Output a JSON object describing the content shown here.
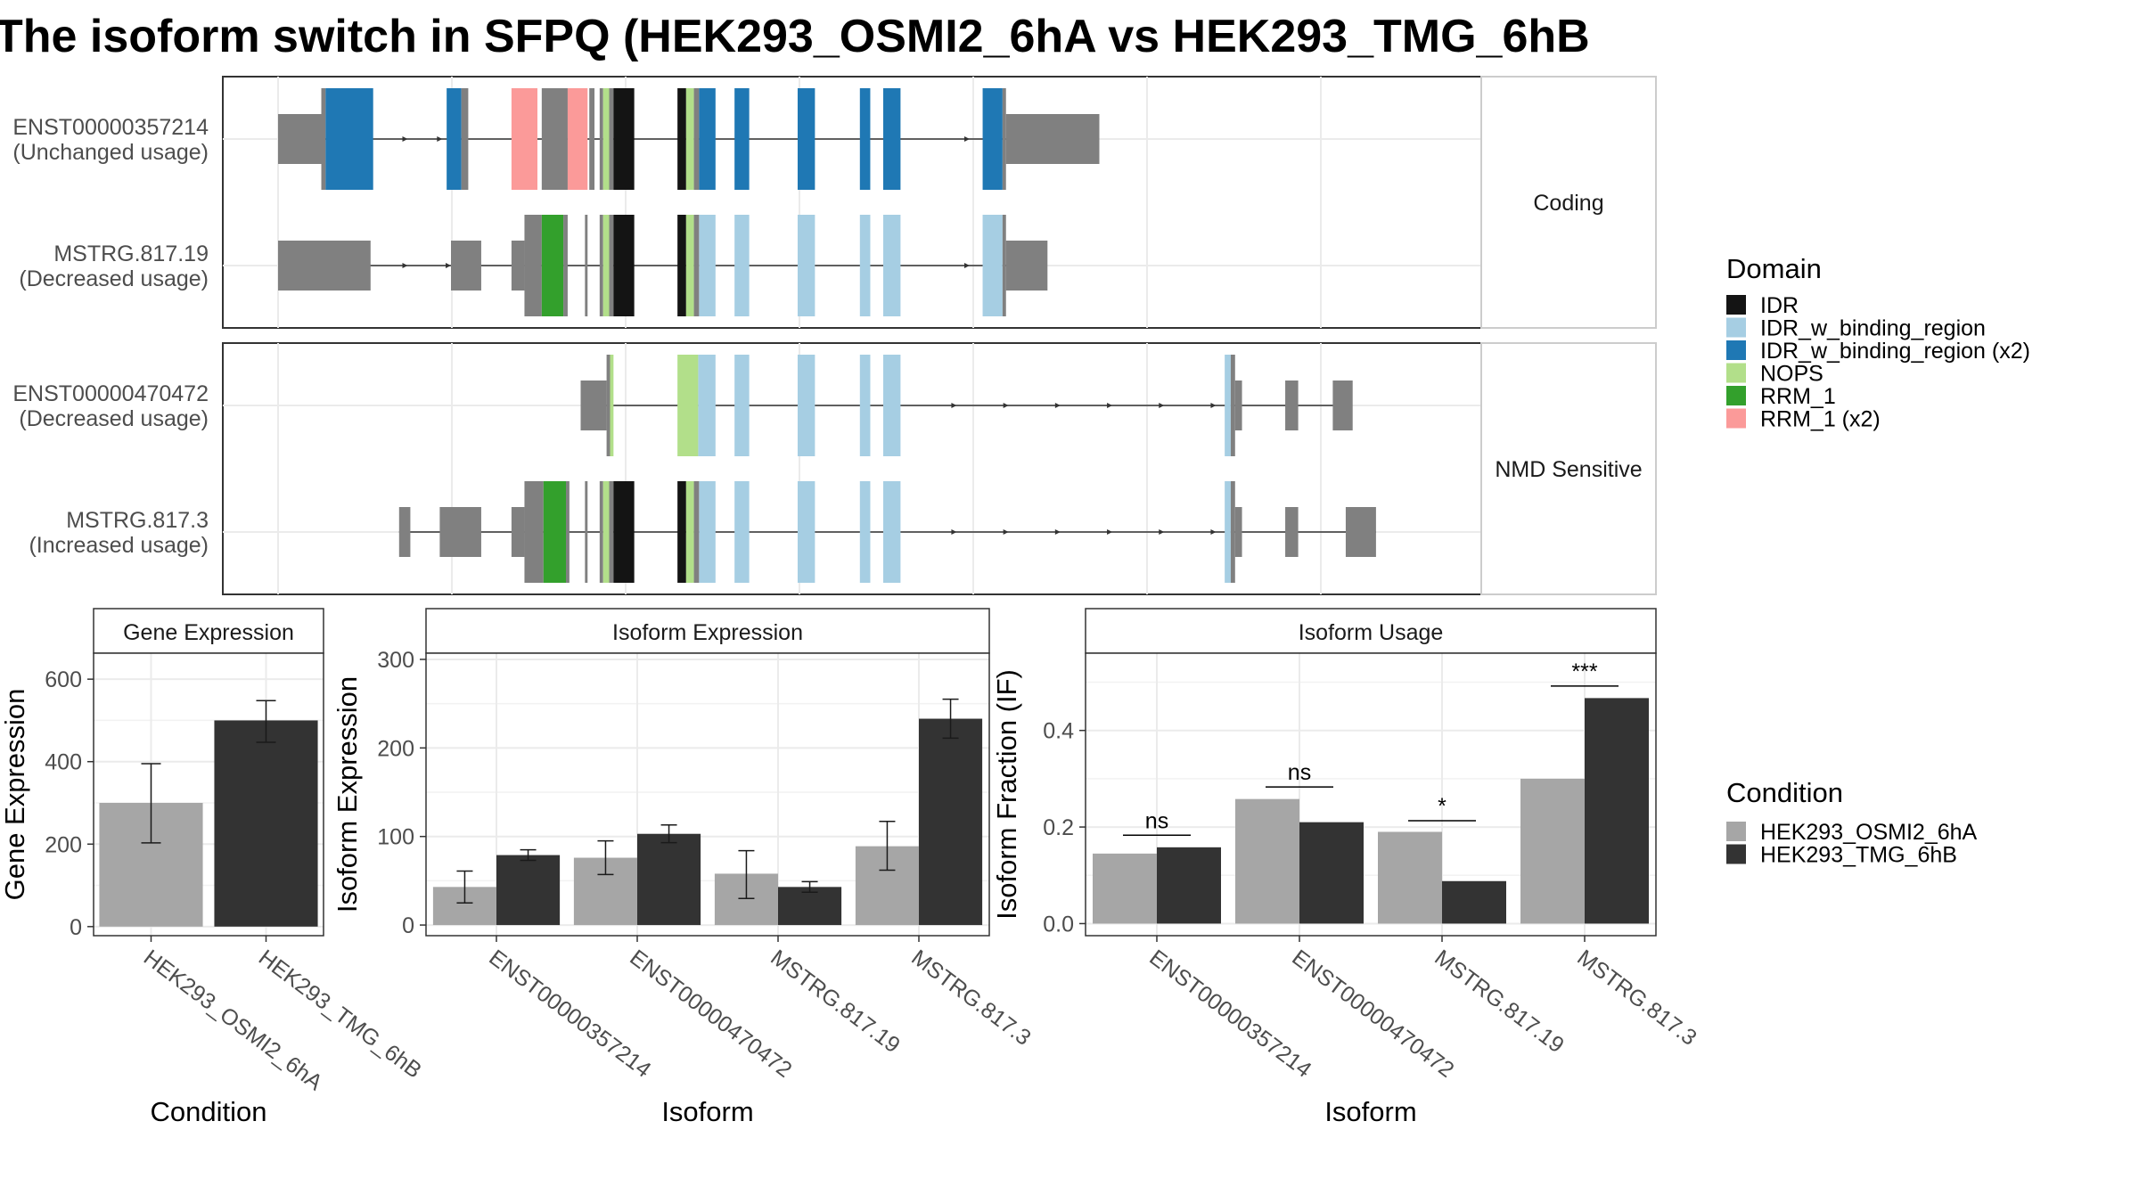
{
  "title": "The isoform switch in SFPQ (HEK293_OSMI2_6hA vs HEK293_TMG_6hB",
  "colors": {
    "utr": "#808080",
    "IDR": "#141414",
    "IDR_w_binding_region": "#a6cee3",
    "IDR_w_binding_region (x2)": "#1f78b4",
    "NOPS": "#b2df8a",
    "RRM_1": "#33a02c",
    "RRM_1 (x2)": "#fb9a99",
    "cond_a": "#a6a6a6",
    "cond_b": "#333333"
  },
  "legend_domain": {
    "title": "Domain",
    "items": [
      "IDR",
      "IDR_w_binding_region",
      "IDR_w_binding_region (x2)",
      "NOPS",
      "RRM_1",
      "RRM_1 (x2)"
    ]
  },
  "legend_condition": {
    "title": "Condition",
    "items": [
      "HEK293_OSMI2_6hA",
      "HEK293_TMG_6hB"
    ]
  },
  "structure": {
    "axis_range": [
      0,
      1370
    ],
    "panels": [
      {
        "strip": "Coding",
        "isoforms": [
          {
            "name": "ENST00000357214",
            "usage": "(Unchanged usage)",
            "intron": [
              0,
              945
            ],
            "arrows": [
              150,
              190,
              800
            ],
            "exons": [
              {
                "s": 0,
                "e": 50,
                "h": "small",
                "f": "utr"
              },
              {
                "s": 50,
                "e": 55,
                "h": "big",
                "f": "utr"
              },
              {
                "s": 55,
                "e": 110,
                "h": "big",
                "f": "IDR_w_binding_region (x2)"
              },
              {
                "s": 195,
                "e": 212,
                "h": "big",
                "f": "IDR_w_binding_region (x2)"
              },
              {
                "s": 212,
                "e": 220,
                "h": "big",
                "f": "utr"
              },
              {
                "s": 270,
                "e": 300,
                "h": "big",
                "f": "RRM_1 (x2)"
              },
              {
                "s": 305,
                "e": 335,
                "h": "big",
                "f": "utr"
              },
              {
                "s": 335,
                "e": 358,
                "h": "big",
                "f": "RRM_1 (x2)"
              },
              {
                "s": 360,
                "e": 366,
                "h": "big",
                "f": "utr"
              },
              {
                "s": 372,
                "e": 376,
                "h": "big",
                "f": "utr"
              },
              {
                "s": 376,
                "e": 383,
                "h": "big",
                "f": "NOPS"
              },
              {
                "s": 383,
                "e": 388,
                "h": "big",
                "f": "utr"
              },
              {
                "s": 388,
                "e": 412,
                "h": "big",
                "f": "IDR"
              },
              {
                "s": 462,
                "e": 472,
                "h": "big",
                "f": "IDR"
              },
              {
                "s": 472,
                "e": 481,
                "h": "big",
                "f": "NOPS"
              },
              {
                "s": 481,
                "e": 487,
                "h": "big",
                "f": "utr"
              },
              {
                "s": 487,
                "e": 506,
                "h": "big",
                "f": "IDR_w_binding_region (x2)"
              },
              {
                "s": 528,
                "e": 545,
                "h": "big",
                "f": "IDR_w_binding_region (x2)"
              },
              {
                "s": 601,
                "e": 621,
                "h": "big",
                "f": "IDR_w_binding_region (x2)"
              },
              {
                "s": 673,
                "e": 685,
                "h": "big",
                "f": "IDR_w_binding_region (x2)"
              },
              {
                "s": 700,
                "e": 720,
                "h": "big",
                "f": "IDR_w_binding_region (x2)"
              },
              {
                "s": 815,
                "e": 838,
                "h": "big",
                "f": "IDR_w_binding_region (x2)"
              },
              {
                "s": 838,
                "e": 842,
                "h": "big",
                "f": "utr"
              },
              {
                "s": 842,
                "e": 950,
                "h": "small",
                "f": "utr"
              }
            ]
          },
          {
            "name": "MSTRG.817.19",
            "usage": "(Decreased usage)",
            "intron": [
              0,
              880
            ],
            "arrows": [
              150,
              200,
              800
            ],
            "exons": [
              {
                "s": 0,
                "e": 107,
                "h": "small",
                "f": "utr"
              },
              {
                "s": 200,
                "e": 235,
                "h": "small",
                "f": "utr"
              },
              {
                "s": 270,
                "e": 285,
                "h": "small",
                "f": "utr"
              },
              {
                "s": 285,
                "e": 305,
                "h": "big",
                "f": "utr"
              },
              {
                "s": 305,
                "e": 330,
                "h": "big",
                "f": "RRM_1"
              },
              {
                "s": 330,
                "e": 335,
                "h": "big",
                "f": "utr"
              },
              {
                "s": 355,
                "e": 358,
                "h": "big",
                "f": "utr"
              },
              {
                "s": 372,
                "e": 376,
                "h": "big",
                "f": "utr"
              },
              {
                "s": 376,
                "e": 383,
                "h": "big",
                "f": "NOPS"
              },
              {
                "s": 383,
                "e": 388,
                "h": "big",
                "f": "utr"
              },
              {
                "s": 388,
                "e": 412,
                "h": "big",
                "f": "IDR"
              },
              {
                "s": 462,
                "e": 472,
                "h": "big",
                "f": "IDR"
              },
              {
                "s": 472,
                "e": 481,
                "h": "big",
                "f": "NOPS"
              },
              {
                "s": 481,
                "e": 487,
                "h": "big",
                "f": "utr"
              },
              {
                "s": 487,
                "e": 506,
                "h": "big",
                "f": "IDR_w_binding_region"
              },
              {
                "s": 528,
                "e": 545,
                "h": "big",
                "f": "IDR_w_binding_region"
              },
              {
                "s": 601,
                "e": 621,
                "h": "big",
                "f": "IDR_w_binding_region"
              },
              {
                "s": 673,
                "e": 685,
                "h": "big",
                "f": "IDR_w_binding_region"
              },
              {
                "s": 700,
                "e": 720,
                "h": "big",
                "f": "IDR_w_binding_region"
              },
              {
                "s": 815,
                "e": 838,
                "h": "big",
                "f": "IDR_w_binding_region"
              },
              {
                "s": 838,
                "e": 842,
                "h": "big",
                "f": "utr"
              },
              {
                "s": 842,
                "e": 890,
                "h": "small",
                "f": "utr"
              }
            ]
          }
        ]
      },
      {
        "strip": "NMD Sensitive",
        "isoforms": [
          {
            "name": "ENST00000470472",
            "usage": "(Decreased usage)",
            "intron": [
              350,
              1240
            ],
            "arrows": [
              785,
              845,
              905,
              965,
              1025,
              1085
            ],
            "exons": [
              {
                "s": 350,
                "e": 380,
                "h": "small",
                "f": "utr"
              },
              {
                "s": 380,
                "e": 384,
                "h": "big",
                "f": "utr"
              },
              {
                "s": 384,
                "e": 388,
                "h": "big",
                "f": "NOPS"
              },
              {
                "s": 462,
                "e": 486,
                "h": "big",
                "f": "NOPS"
              },
              {
                "s": 486,
                "e": 506,
                "h": "big",
                "f": "IDR_w_binding_region"
              },
              {
                "s": 528,
                "e": 545,
                "h": "big",
                "f": "IDR_w_binding_region"
              },
              {
                "s": 601,
                "e": 621,
                "h": "big",
                "f": "IDR_w_binding_region"
              },
              {
                "s": 673,
                "e": 685,
                "h": "big",
                "f": "IDR_w_binding_region"
              },
              {
                "s": 700,
                "e": 720,
                "h": "big",
                "f": "IDR_w_binding_region"
              },
              {
                "s": 1095,
                "e": 1102,
                "h": "big",
                "f": "IDR_w_binding_region"
              },
              {
                "s": 1102,
                "e": 1107,
                "h": "big",
                "f": "utr"
              },
              {
                "s": 1107,
                "e": 1115,
                "h": "small",
                "f": "utr"
              },
              {
                "s": 1165,
                "e": 1180,
                "h": "small",
                "f": "utr"
              },
              {
                "s": 1220,
                "e": 1243,
                "h": "small",
                "f": "utr"
              }
            ]
          },
          {
            "name": "MSTRG.817.3",
            "usage": "(Increased usage)",
            "intron": [
              140,
              1270
            ],
            "arrows": [
              785,
              845,
              905,
              965,
              1025,
              1085
            ],
            "exons": [
              {
                "s": 140,
                "e": 153,
                "h": "small",
                "f": "utr"
              },
              {
                "s": 187,
                "e": 235,
                "h": "small",
                "f": "utr"
              },
              {
                "s": 270,
                "e": 285,
                "h": "small",
                "f": "utr"
              },
              {
                "s": 285,
                "e": 307,
                "h": "big",
                "f": "utr"
              },
              {
                "s": 307,
                "e": 333,
                "h": "big",
                "f": "RRM_1"
              },
              {
                "s": 333,
                "e": 337,
                "h": "big",
                "f": "utr"
              },
              {
                "s": 355,
                "e": 358,
                "h": "big",
                "f": "utr"
              },
              {
                "s": 372,
                "e": 376,
                "h": "big",
                "f": "utr"
              },
              {
                "s": 376,
                "e": 383,
                "h": "big",
                "f": "NOPS"
              },
              {
                "s": 383,
                "e": 388,
                "h": "big",
                "f": "utr"
              },
              {
                "s": 388,
                "e": 412,
                "h": "big",
                "f": "IDR"
              },
              {
                "s": 462,
                "e": 472,
                "h": "big",
                "f": "IDR"
              },
              {
                "s": 472,
                "e": 481,
                "h": "big",
                "f": "NOPS"
              },
              {
                "s": 481,
                "e": 487,
                "h": "big",
                "f": "utr"
              },
              {
                "s": 487,
                "e": 506,
                "h": "big",
                "f": "IDR_w_binding_region"
              },
              {
                "s": 528,
                "e": 545,
                "h": "big",
                "f": "IDR_w_binding_region"
              },
              {
                "s": 601,
                "e": 621,
                "h": "big",
                "f": "IDR_w_binding_region"
              },
              {
                "s": 673,
                "e": 685,
                "h": "big",
                "f": "IDR_w_binding_region"
              },
              {
                "s": 700,
                "e": 720,
                "h": "big",
                "f": "IDR_w_binding_region"
              },
              {
                "s": 1095,
                "e": 1102,
                "h": "big",
                "f": "IDR_w_binding_region"
              },
              {
                "s": 1102,
                "e": 1107,
                "h": "big",
                "f": "utr"
              },
              {
                "s": 1107,
                "e": 1115,
                "h": "small",
                "f": "utr"
              },
              {
                "s": 1165,
                "e": 1180,
                "h": "small",
                "f": "utr"
              },
              {
                "s": 1235,
                "e": 1270,
                "h": "small",
                "f": "utr"
              }
            ]
          }
        ]
      }
    ]
  },
  "chart_data": [
    {
      "type": "bar",
      "title": "Gene Expression",
      "xlabel": "Condition",
      "ylabel": "Gene Expression",
      "categories": [
        "HEK293_OSMI2_6hA",
        "HEK293_TMG_6hB"
      ],
      "values": [
        300,
        500
      ],
      "err_low": [
        203,
        447
      ],
      "err_high": [
        395,
        548
      ],
      "yticks": [
        "0",
        "200",
        "400",
        "600"
      ],
      "ylim": [
        -22,
        663
      ]
    },
    {
      "type": "bar",
      "title": "Isoform Expression",
      "xlabel": "Isoform",
      "ylabel": "Isoform Expression",
      "categories": [
        "ENST00000357214",
        "ENST00000470472",
        "MSTRG.817.19",
        "MSTRG.817.3"
      ],
      "series": [
        {
          "name": "HEK293_OSMI2_6hA",
          "values": [
            43,
            76,
            58,
            89
          ],
          "err_low": [
            25,
            57,
            30,
            62
          ],
          "err_high": [
            61,
            95,
            84,
            117
          ]
        },
        {
          "name": "HEK293_TMG_6hB",
          "values": [
            79,
            103,
            43,
            233
          ],
          "err_low": [
            73,
            93,
            37,
            211
          ],
          "err_high": [
            85,
            113,
            49,
            255
          ]
        }
      ],
      "yticks": [
        "0",
        "100",
        "200",
        "300"
      ],
      "ylim": [
        -12,
        307
      ]
    },
    {
      "type": "bar",
      "title": "Isoform Usage",
      "xlabel": "Isoform",
      "ylabel": "Isoform Fraction (IF)",
      "categories": [
        "ENST00000357214",
        "ENST00000470472",
        "MSTRG.817.19",
        "MSTRG.817.3"
      ],
      "series": [
        {
          "name": "HEK293_OSMI2_6hA",
          "values": [
            0.145,
            0.258,
            0.19,
            0.3
          ]
        },
        {
          "name": "HEK293_TMG_6hB",
          "values": [
            0.158,
            0.21,
            0.088,
            0.467
          ]
        }
      ],
      "significance": [
        "ns",
        "ns",
        "*",
        "***"
      ],
      "sig_y": [
        0.183,
        0.283,
        0.213,
        0.492
      ],
      "yticks": [
        "0.0",
        "0.2",
        "0.4"
      ],
      "ylim": [
        -0.025,
        0.56
      ]
    }
  ]
}
